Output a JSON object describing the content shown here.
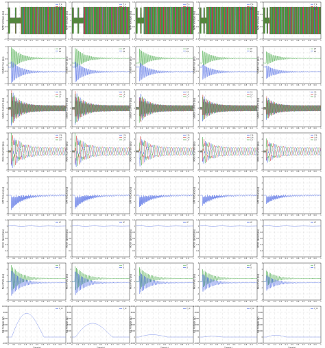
{
  "figure": {
    "columns": 5,
    "rows": 8,
    "background": "#ffffff",
    "grid_color": "#9a9a9a"
  },
  "chart_data": {
    "type": "line",
    "grid": true,
    "x_tick_labels": [
      "0",
      "0.1",
      "0.2",
      "0.3",
      "0.4",
      "0.5",
      "0.6",
      "0.7",
      "0.8",
      "0.9",
      "1"
    ],
    "xlabel": "Time(s)",
    "xlim": [
      0,
      1
    ],
    "column_xlabels": [
      "Time(s)",
      "Time(s)",
      "Time(s)",
      "Time(s)",
      "Time(s)"
    ],
    "rows": [
      {
        "id": "pwm_voltage",
        "ylabel": "PWM Voltage (pu)",
        "kind": "pwm",
        "ylim": [
          -1.5,
          1.5
        ],
        "y_ticks": [
          "1.5",
          "1",
          "0.5",
          "0",
          "-0.5",
          "-1",
          "-1.5"
        ],
        "colors": [
          "#3050e0",
          "#d03030",
          "#30a030"
        ],
        "legend": [
          "V_a",
          "V_b",
          "V_c"
        ]
      },
      {
        "id": "stator_flux",
        "ylabel": "Stator Flux (pu)",
        "kind": "flux",
        "ylim": [
          -1.5,
          1.5
        ],
        "y_ticks": [
          "1.5",
          "1",
          "0.5",
          "0",
          "-0.5",
          "-1",
          "-1.5"
        ],
        "colors": [
          "#2e9e2e",
          "#3050e0"
        ],
        "legend": [
          "ψd",
          "ψq"
        ]
      },
      {
        "id": "stator_current",
        "ylabel": "Stator Current (pu)",
        "kind": "stator_current",
        "ylim": [
          -6,
          6
        ],
        "y_ticks": [
          "6",
          "4",
          "2",
          "0",
          "-2",
          "-4",
          "-6"
        ],
        "colors": [
          "#3050e0",
          "#d03030",
          "#30a030"
        ],
        "legend": [
          "i_a",
          "i_b",
          "i_c"
        ]
      },
      {
        "id": "rotor_current",
        "ylabel": "Rotor Current (pu)",
        "kind": "rotor_current",
        "ylim": [
          -6,
          6
        ],
        "y_ticks": [
          "6",
          "4",
          "2",
          "0",
          "-2",
          "-4",
          "-6"
        ],
        "colors": [
          "#3050e0",
          "#d03030",
          "#30a030"
        ],
        "legend": [
          "i_ra",
          "i_rb",
          "i_rc"
        ]
      },
      {
        "id": "em_torque",
        "ylabel": "EM Torque (pu)",
        "kind": "torque",
        "ylim": [
          -3,
          3
        ],
        "y_ticks": [
          "3",
          "2",
          "1",
          "0",
          "-1",
          "-2",
          "-3"
        ],
        "colors": [
          "#3050e0"
        ],
        "legend": []
      },
      {
        "id": "rotor_speed",
        "ylabel": "Rotor Speed (pu)",
        "kind": "speed",
        "ylim": [
          0,
          1.2
        ],
        "y_ticks": [
          "1.2",
          "1",
          "0.8",
          "0.6",
          "0.4",
          "0.2",
          "0"
        ],
        "colors": [
          "#3050e0"
        ],
        "legend": [
          "ωr"
        ]
      },
      {
        "id": "real_power",
        "ylabel": "Real P&Q (pu)",
        "kind": "power",
        "ylim": [
          -3,
          3
        ],
        "y_ticks": [
          "3",
          "2",
          "1",
          "0",
          "-1",
          "-2",
          "-3"
        ],
        "colors": [
          "#2e9e2e",
          "#3050e0"
        ],
        "legend": [
          "P",
          "Q"
        ]
      },
      {
        "id": "dc_voltage",
        "ylabel": "DC Voltage (V)",
        "kind": "dc",
        "ylim": [
          -2000,
          10000
        ],
        "y_ticks": [
          "10000",
          "8000",
          "6000",
          "4000",
          "2000",
          "0",
          "-2000"
        ],
        "colors": [
          "#3050e0"
        ],
        "legend": [
          "V_dc"
        ]
      }
    ],
    "columns": [
      {
        "case": 1,
        "pwm_gap": [
          0.12,
          0.22
        ],
        "transient_start": 0.05,
        "transient_scale": 1.0,
        "dc_peak": 9000,
        "dc_end": 0.62
      },
      {
        "case": 2,
        "pwm_gap": [
          0.1,
          0.2
        ],
        "transient_start": 0.05,
        "transient_scale": 0.95,
        "dc_peak": 5200,
        "dc_end": 0.7
      },
      {
        "case": 3,
        "pwm_gap": [
          0.08,
          0.14
        ],
        "transient_start": 0.06,
        "transient_scale": 0.85,
        "dc_peak": 900,
        "dc_end": 0.55
      },
      {
        "case": 4,
        "pwm_gap": [
          0.07,
          0.12
        ],
        "transient_start": 0.05,
        "transient_scale": 0.7,
        "dc_peak": 300,
        "dc_end": 0.4
      },
      {
        "case": 5,
        "pwm_gap": [
          0.06,
          0.11
        ],
        "transient_start": 0.05,
        "transient_scale": 0.6,
        "dc_peak": 700,
        "dc_end": 0.4
      }
    ]
  }
}
